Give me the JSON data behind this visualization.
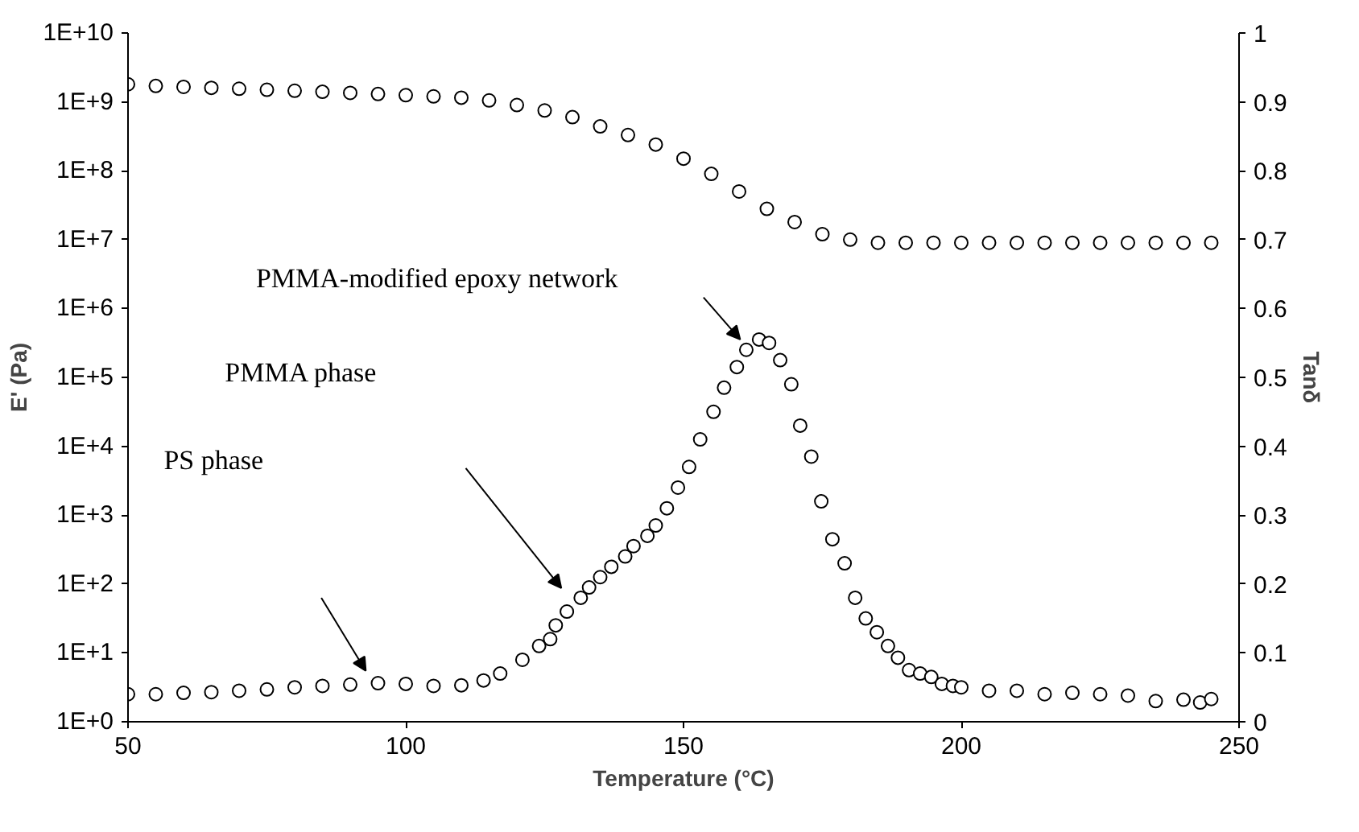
{
  "chart_data": {
    "type": "scatter",
    "xlabel": "Temperature (°C)",
    "ylabel": "E' (Pa)",
    "y2label": "Tanδ",
    "xlim": [
      50,
      250
    ],
    "xticks": [
      50,
      100,
      150,
      200,
      250
    ],
    "log": "y",
    "ylim": [
      1,
      10000000000
    ],
    "yticks": [
      {
        "value": 1,
        "label": "1E+0"
      },
      {
        "value": 10,
        "label": "1E+1"
      },
      {
        "value": 100,
        "label": "1E+2"
      },
      {
        "value": 1000,
        "label": "1E+3"
      },
      {
        "value": 10000,
        "label": "1E+4"
      },
      {
        "value": 100000,
        "label": "1E+5"
      },
      {
        "value": 1000000,
        "label": "1E+6"
      },
      {
        "value": 10000000,
        "label": "1E+7"
      },
      {
        "value": 100000000,
        "label": "1E+8"
      },
      {
        "value": 1000000000,
        "label": "1E+9"
      },
      {
        "value": 10000000000,
        "label": "1E+10"
      }
    ],
    "y2lim": [
      0,
      1
    ],
    "y2ticks": [
      0,
      0.1,
      0.2,
      0.3,
      0.4,
      0.5,
      0.6,
      0.7,
      0.8,
      0.9,
      1
    ],
    "marker": "circle",
    "grid": false,
    "series": [
      {
        "color": "#000000",
        "x": [
          50,
          55,
          60,
          65,
          70,
          75,
          80,
          85,
          90,
          95,
          100,
          105,
          110,
          115,
          120,
          125,
          130,
          135,
          140,
          145,
          150,
          155,
          160,
          165,
          170,
          175,
          180,
          185,
          190,
          195,
          200,
          205,
          210,
          215,
          220,
          225,
          230,
          235,
          240,
          245
        ],
        "values": [
          1800000000,
          1700000000,
          1650000000,
          1600000000,
          1550000000,
          1500000000,
          1450000000,
          1400000000,
          1350000000,
          1300000000,
          1250000000,
          1200000000,
          1150000000,
          1050000000,
          900000000,
          750000000,
          600000000,
          440000000,
          330000000,
          240000000,
          150000000,
          90000000,
          50000000,
          28000000,
          18000000,
          12000000,
          10000000,
          9000000,
          9000000,
          9000000,
          9000000,
          9000000,
          9000000,
          9000000,
          9000000,
          9000000,
          9000000,
          9000000,
          9000000,
          9000000
        ]
      },
      {
        "color": "#000000",
        "axis": "y2",
        "x": [
          50,
          55,
          60,
          65,
          70,
          75,
          80,
          85,
          90,
          95,
          100,
          105,
          110,
          114,
          117,
          121,
          124,
          126,
          127,
          129,
          131.5,
          133,
          135,
          137,
          139.5,
          141,
          143.5,
          145,
          147,
          149,
          151,
          153,
          155.4,
          157.3,
          159.6,
          161.3,
          163.6,
          165.4,
          167.4,
          169.4,
          171,
          173,
          174.8,
          176.8,
          179,
          180.9,
          182.8,
          184.8,
          186.8,
          188.6,
          190.6,
          192.6,
          194.6,
          196.5,
          198.5,
          200,
          205,
          210,
          215,
          220,
          225,
          230,
          235,
          240,
          243,
          245
        ],
        "values": [
          0.04,
          0.04,
          0.042,
          0.043,
          0.045,
          0.047,
          0.05,
          0.052,
          0.054,
          0.056,
          0.055,
          0.052,
          0.053,
          0.06,
          0.07,
          0.09,
          0.11,
          0.12,
          0.14,
          0.16,
          0.18,
          0.195,
          0.21,
          0.225,
          0.24,
          0.255,
          0.27,
          0.285,
          0.31,
          0.34,
          0.37,
          0.41,
          0.45,
          0.485,
          0.515,
          0.54,
          0.555,
          0.55,
          0.525,
          0.49,
          0.43,
          0.385,
          0.32,
          0.265,
          0.23,
          0.18,
          0.15,
          0.13,
          0.11,
          0.093,
          0.075,
          0.07,
          0.065,
          0.055,
          0.052,
          0.05,
          0.045,
          0.045,
          0.04,
          0.042,
          0.04,
          0.038,
          0.03,
          0.032,
          0.028,
          0.033
        ]
      }
    ],
    "annotations": [
      "PS phase",
      "PMMA phase",
      "PMMA-modified epoxy network"
    ]
  }
}
